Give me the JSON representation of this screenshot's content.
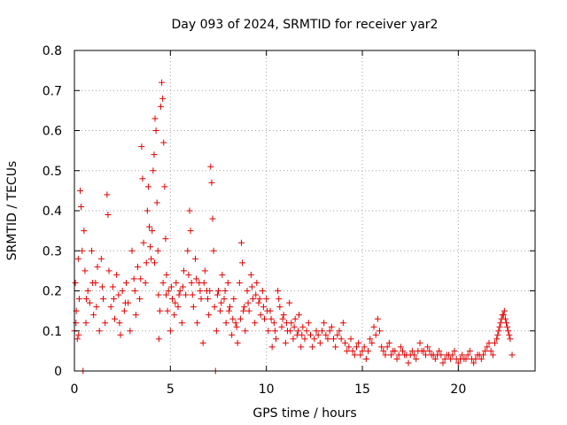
{
  "chart_data": {
    "type": "scatter",
    "title": "Day 093 of 2024, SRMTID for receiver yar2",
    "xlabel": "GPS time / hours",
    "ylabel": "SRMTID / TECUs",
    "xlim": [
      0,
      24
    ],
    "ylim": [
      0,
      0.8
    ],
    "xticks": [
      0,
      5,
      10,
      15,
      20
    ],
    "yticks": [
      0,
      0.1,
      0.2,
      0.3,
      0.4,
      0.5,
      0.6,
      0.7,
      0.8
    ],
    "xtick_labels": [
      "0",
      "5",
      "10",
      "15",
      "20"
    ],
    "ytick_labels": [
      "0",
      "0.1",
      "0.2",
      "0.3",
      "0.4",
      "0.5",
      "0.6",
      "0.7",
      "0.8"
    ],
    "grid": true,
    "marker": "+",
    "series": [
      {
        "name": "SRMTID",
        "color": "#e00000",
        "points": [
          [
            0.0,
            0.1
          ],
          [
            0.05,
            0.22
          ],
          [
            0.1,
            0.15
          ],
          [
            0.15,
            0.08
          ],
          [
            0.2,
            0.28
          ],
          [
            0.25,
            0.18
          ],
          [
            0.3,
            0.45
          ],
          [
            0.35,
            0.41
          ],
          [
            0.4,
            0.3
          ],
          [
            0.45,
            0.0
          ],
          [
            0.5,
            0.35
          ],
          [
            0.55,
            0.25
          ],
          [
            0.6,
            0.12
          ],
          [
            0.7,
            0.2
          ],
          [
            0.8,
            0.17
          ],
          [
            0.9,
            0.3
          ],
          [
            1.0,
            0.14
          ],
          [
            1.1,
            0.22
          ],
          [
            1.2,
            0.26
          ],
          [
            1.3,
            0.1
          ],
          [
            1.4,
            0.28
          ],
          [
            1.5,
            0.18
          ],
          [
            1.6,
            0.12
          ],
          [
            1.7,
            0.44
          ],
          [
            1.75,
            0.39
          ],
          [
            1.8,
            0.25
          ],
          [
            1.9,
            0.16
          ],
          [
            2.0,
            0.21
          ],
          [
            2.1,
            0.13
          ],
          [
            2.2,
            0.24
          ],
          [
            2.3,
            0.19
          ],
          [
            2.4,
            0.09
          ],
          [
            2.5,
            0.2
          ],
          [
            2.6,
            0.15
          ],
          [
            2.7,
            0.22
          ],
          [
            2.8,
            0.17
          ],
          [
            2.9,
            0.1
          ],
          [
            3.0,
            0.3
          ],
          [
            3.1,
            0.23
          ],
          [
            3.2,
            0.14
          ],
          [
            3.3,
            0.26
          ],
          [
            3.4,
            0.18
          ],
          [
            3.5,
            0.56
          ],
          [
            3.55,
            0.48
          ],
          [
            3.6,
            0.32
          ],
          [
            3.7,
            0.22
          ],
          [
            3.8,
            0.4
          ],
          [
            3.85,
            0.46
          ],
          [
            3.9,
            0.36
          ],
          [
            4.0,
            0.28
          ],
          [
            4.1,
            0.5
          ],
          [
            4.15,
            0.54
          ],
          [
            4.2,
            0.63
          ],
          [
            4.25,
            0.6
          ],
          [
            4.3,
            0.42
          ],
          [
            4.35,
            0.3
          ],
          [
            4.4,
            0.08
          ],
          [
            4.45,
            0.15
          ],
          [
            4.5,
            0.66
          ],
          [
            4.55,
            0.72
          ],
          [
            4.6,
            0.68
          ],
          [
            4.65,
            0.57
          ],
          [
            4.7,
            0.46
          ],
          [
            4.75,
            0.33
          ],
          [
            4.8,
            0.24
          ],
          [
            4.85,
            0.15
          ],
          [
            4.9,
            0.2
          ],
          [
            5.0,
            0.1
          ],
          [
            5.1,
            0.18
          ],
          [
            5.2,
            0.14
          ],
          [
            5.3,
            0.22
          ],
          [
            5.4,
            0.16
          ],
          [
            5.5,
            0.2
          ],
          [
            5.6,
            0.12
          ],
          [
            5.7,
            0.25
          ],
          [
            5.8,
            0.19
          ],
          [
            5.9,
            0.3
          ],
          [
            6.0,
            0.4
          ],
          [
            6.05,
            0.35
          ],
          [
            6.1,
            0.22
          ],
          [
            6.2,
            0.16
          ],
          [
            6.3,
            0.28
          ],
          [
            6.4,
            0.12
          ],
          [
            6.5,
            0.22
          ],
          [
            6.6,
            0.18
          ],
          [
            6.7,
            0.07
          ],
          [
            6.8,
            0.25
          ],
          [
            6.9,
            0.2
          ],
          [
            7.0,
            0.14
          ],
          [
            7.1,
            0.51
          ],
          [
            7.15,
            0.47
          ],
          [
            7.2,
            0.38
          ],
          [
            7.25,
            0.3
          ],
          [
            7.3,
            0.16
          ],
          [
            7.35,
            0.0
          ],
          [
            7.4,
            0.1
          ],
          [
            7.5,
            0.2
          ],
          [
            7.6,
            0.15
          ],
          [
            7.7,
            0.24
          ],
          [
            7.8,
            0.18
          ],
          [
            7.9,
            0.12
          ],
          [
            8.0,
            0.22
          ],
          [
            8.1,
            0.16
          ],
          [
            8.2,
            0.09
          ],
          [
            8.3,
            0.18
          ],
          [
            8.4,
            0.12
          ],
          [
            8.5,
            0.07
          ],
          [
            8.6,
            0.22
          ],
          [
            8.7,
            0.32
          ],
          [
            8.75,
            0.27
          ],
          [
            8.8,
            0.15
          ],
          [
            8.9,
            0.1
          ],
          [
            9.0,
            0.2
          ],
          [
            9.1,
            0.15
          ],
          [
            9.2,
            0.24
          ],
          [
            9.3,
            0.18
          ],
          [
            9.4,
            0.12
          ],
          [
            9.5,
            0.22
          ],
          [
            9.6,
            0.17
          ],
          [
            9.7,
            0.14
          ],
          [
            9.8,
            0.2
          ],
          [
            9.9,
            0.13
          ],
          [
            10.0,
            0.18
          ],
          [
            10.1,
            0.1
          ],
          [
            10.2,
            0.15
          ],
          [
            10.3,
            0.06
          ],
          [
            10.4,
            0.12
          ],
          [
            10.5,
            0.08
          ],
          [
            10.6,
            0.2
          ],
          [
            10.7,
            0.16
          ],
          [
            10.8,
            0.11
          ],
          [
            10.9,
            0.14
          ],
          [
            11.0,
            0.07
          ],
          [
            11.1,
            0.1
          ],
          [
            11.2,
            0.17
          ],
          [
            11.3,
            0.12
          ],
          [
            11.4,
            0.08
          ],
          [
            11.5,
            0.13
          ],
          [
            11.6,
            0.09
          ],
          [
            11.7,
            0.14
          ],
          [
            11.8,
            0.06
          ],
          [
            11.9,
            0.11
          ],
          [
            12.0,
            0.08
          ],
          [
            12.2,
            0.12
          ],
          [
            12.4,
            0.06
          ],
          [
            12.6,
            0.1
          ],
          [
            12.8,
            0.07
          ],
          [
            13.0,
            0.12
          ],
          [
            13.2,
            0.08
          ],
          [
            13.4,
            0.11
          ],
          [
            13.6,
            0.06
          ],
          [
            13.8,
            0.1
          ],
          [
            14.0,
            0.12
          ],
          [
            14.2,
            0.05
          ],
          [
            14.4,
            0.08
          ],
          [
            14.6,
            0.04
          ],
          [
            14.8,
            0.07
          ],
          [
            15.0,
            0.05
          ],
          [
            15.2,
            0.03
          ],
          [
            15.4,
            0.08
          ],
          [
            15.6,
            0.11
          ],
          [
            15.8,
            0.13
          ],
          [
            15.9,
            0.1
          ],
          [
            16.0,
            0.06
          ],
          [
            16.2,
            0.04
          ],
          [
            16.4,
            0.07
          ],
          [
            16.6,
            0.05
          ],
          [
            16.8,
            0.03
          ],
          [
            17.0,
            0.06
          ],
          [
            17.2,
            0.04
          ],
          [
            17.4,
            0.02
          ],
          [
            17.6,
            0.05
          ],
          [
            17.8,
            0.03
          ],
          [
            18.0,
            0.07
          ],
          [
            18.2,
            0.05
          ],
          [
            18.4,
            0.06
          ],
          [
            18.6,
            0.04
          ],
          [
            18.8,
            0.03
          ],
          [
            19.0,
            0.05
          ],
          [
            19.2,
            0.02
          ],
          [
            19.4,
            0.04
          ],
          [
            19.6,
            0.03
          ],
          [
            19.8,
            0.05
          ],
          [
            20.0,
            0.02
          ],
          [
            20.2,
            0.04
          ],
          [
            20.4,
            0.03
          ],
          [
            20.6,
            0.05
          ],
          [
            20.8,
            0.02
          ],
          [
            21.0,
            0.04
          ],
          [
            21.2,
            0.03
          ],
          [
            21.4,
            0.05
          ],
          [
            21.6,
            0.07
          ],
          [
            21.8,
            0.04
          ],
          [
            22.0,
            0.08
          ],
          [
            22.1,
            0.1
          ],
          [
            22.2,
            0.12
          ],
          [
            22.3,
            0.14
          ],
          [
            22.4,
            0.15
          ],
          [
            22.5,
            0.12
          ],
          [
            22.6,
            0.1
          ],
          [
            22.7,
            0.08
          ],
          [
            22.8,
            0.04
          ],
          [
            0.08,
            0.12
          ],
          [
            0.22,
            0.09
          ],
          [
            0.62,
            0.18
          ],
          [
            0.95,
            0.22
          ],
          [
            1.15,
            0.16
          ],
          [
            1.45,
            0.21
          ],
          [
            2.05,
            0.18
          ],
          [
            2.35,
            0.12
          ],
          [
            2.65,
            0.17
          ],
          [
            3.15,
            0.2
          ],
          [
            3.45,
            0.23
          ],
          [
            3.75,
            0.27
          ],
          [
            3.95,
            0.31
          ],
          [
            4.05,
            0.35
          ],
          [
            4.18,
            0.27
          ],
          [
            4.38,
            0.19
          ],
          [
            4.62,
            0.22
          ],
          [
            4.78,
            0.19
          ],
          [
            5.05,
            0.21
          ],
          [
            5.25,
            0.17
          ],
          [
            5.45,
            0.19
          ],
          [
            5.65,
            0.21
          ],
          [
            5.95,
            0.24
          ],
          [
            6.15,
            0.19
          ],
          [
            6.35,
            0.23
          ],
          [
            6.55,
            0.2
          ],
          [
            6.75,
            0.22
          ],
          [
            6.95,
            0.18
          ],
          [
            7.05,
            0.2
          ],
          [
            7.45,
            0.19
          ],
          [
            7.65,
            0.17
          ],
          [
            7.85,
            0.2
          ],
          [
            8.05,
            0.15
          ],
          [
            8.25,
            0.13
          ],
          [
            8.45,
            0.11
          ],
          [
            8.65,
            0.13
          ],
          [
            8.85,
            0.16
          ],
          [
            9.05,
            0.17
          ],
          [
            9.25,
            0.21
          ],
          [
            9.45,
            0.19
          ],
          [
            9.65,
            0.18
          ],
          [
            9.85,
            0.16
          ],
          [
            10.05,
            0.15
          ],
          [
            10.25,
            0.13
          ],
          [
            10.45,
            0.1
          ],
          [
            10.65,
            0.18
          ],
          [
            10.85,
            0.13
          ],
          [
            11.05,
            0.12
          ],
          [
            11.25,
            0.1
          ],
          [
            11.45,
            0.11
          ],
          [
            11.65,
            0.1
          ],
          [
            11.85,
            0.09
          ],
          [
            12.1,
            0.1
          ],
          [
            12.3,
            0.09
          ],
          [
            12.5,
            0.08
          ],
          [
            12.7,
            0.09
          ],
          [
            12.9,
            0.1
          ],
          [
            13.1,
            0.09
          ],
          [
            13.3,
            0.1
          ],
          [
            13.5,
            0.08
          ],
          [
            13.7,
            0.09
          ],
          [
            13.9,
            0.08
          ],
          [
            14.1,
            0.07
          ],
          [
            14.3,
            0.06
          ],
          [
            14.5,
            0.05
          ],
          [
            14.7,
            0.06
          ],
          [
            14.9,
            0.04
          ],
          [
            15.1,
            0.06
          ],
          [
            15.3,
            0.05
          ],
          [
            15.5,
            0.07
          ],
          [
            15.7,
            0.09
          ],
          [
            16.1,
            0.05
          ],
          [
            16.3,
            0.06
          ],
          [
            16.5,
            0.04
          ],
          [
            16.7,
            0.05
          ],
          [
            16.9,
            0.04
          ],
          [
            17.1,
            0.05
          ],
          [
            17.3,
            0.04
          ],
          [
            17.5,
            0.04
          ],
          [
            17.7,
            0.04
          ],
          [
            17.9,
            0.05
          ],
          [
            18.1,
            0.05
          ],
          [
            18.3,
            0.04
          ],
          [
            18.5,
            0.05
          ],
          [
            18.7,
            0.04
          ],
          [
            18.9,
            0.04
          ],
          [
            19.1,
            0.04
          ],
          [
            19.3,
            0.03
          ],
          [
            19.5,
            0.04
          ],
          [
            19.7,
            0.04
          ],
          [
            19.9,
            0.03
          ],
          [
            20.1,
            0.03
          ],
          [
            20.3,
            0.03
          ],
          [
            20.5,
            0.04
          ],
          [
            20.7,
            0.03
          ],
          [
            20.9,
            0.03
          ],
          [
            21.1,
            0.04
          ],
          [
            21.3,
            0.04
          ],
          [
            21.5,
            0.06
          ],
          [
            21.7,
            0.05
          ],
          [
            21.9,
            0.07
          ],
          [
            22.05,
            0.09
          ],
          [
            22.15,
            0.11
          ],
          [
            22.25,
            0.13
          ],
          [
            22.35,
            0.14
          ],
          [
            22.45,
            0.13
          ],
          [
            22.55,
            0.11
          ],
          [
            22.65,
            0.09
          ]
        ]
      }
    ]
  }
}
